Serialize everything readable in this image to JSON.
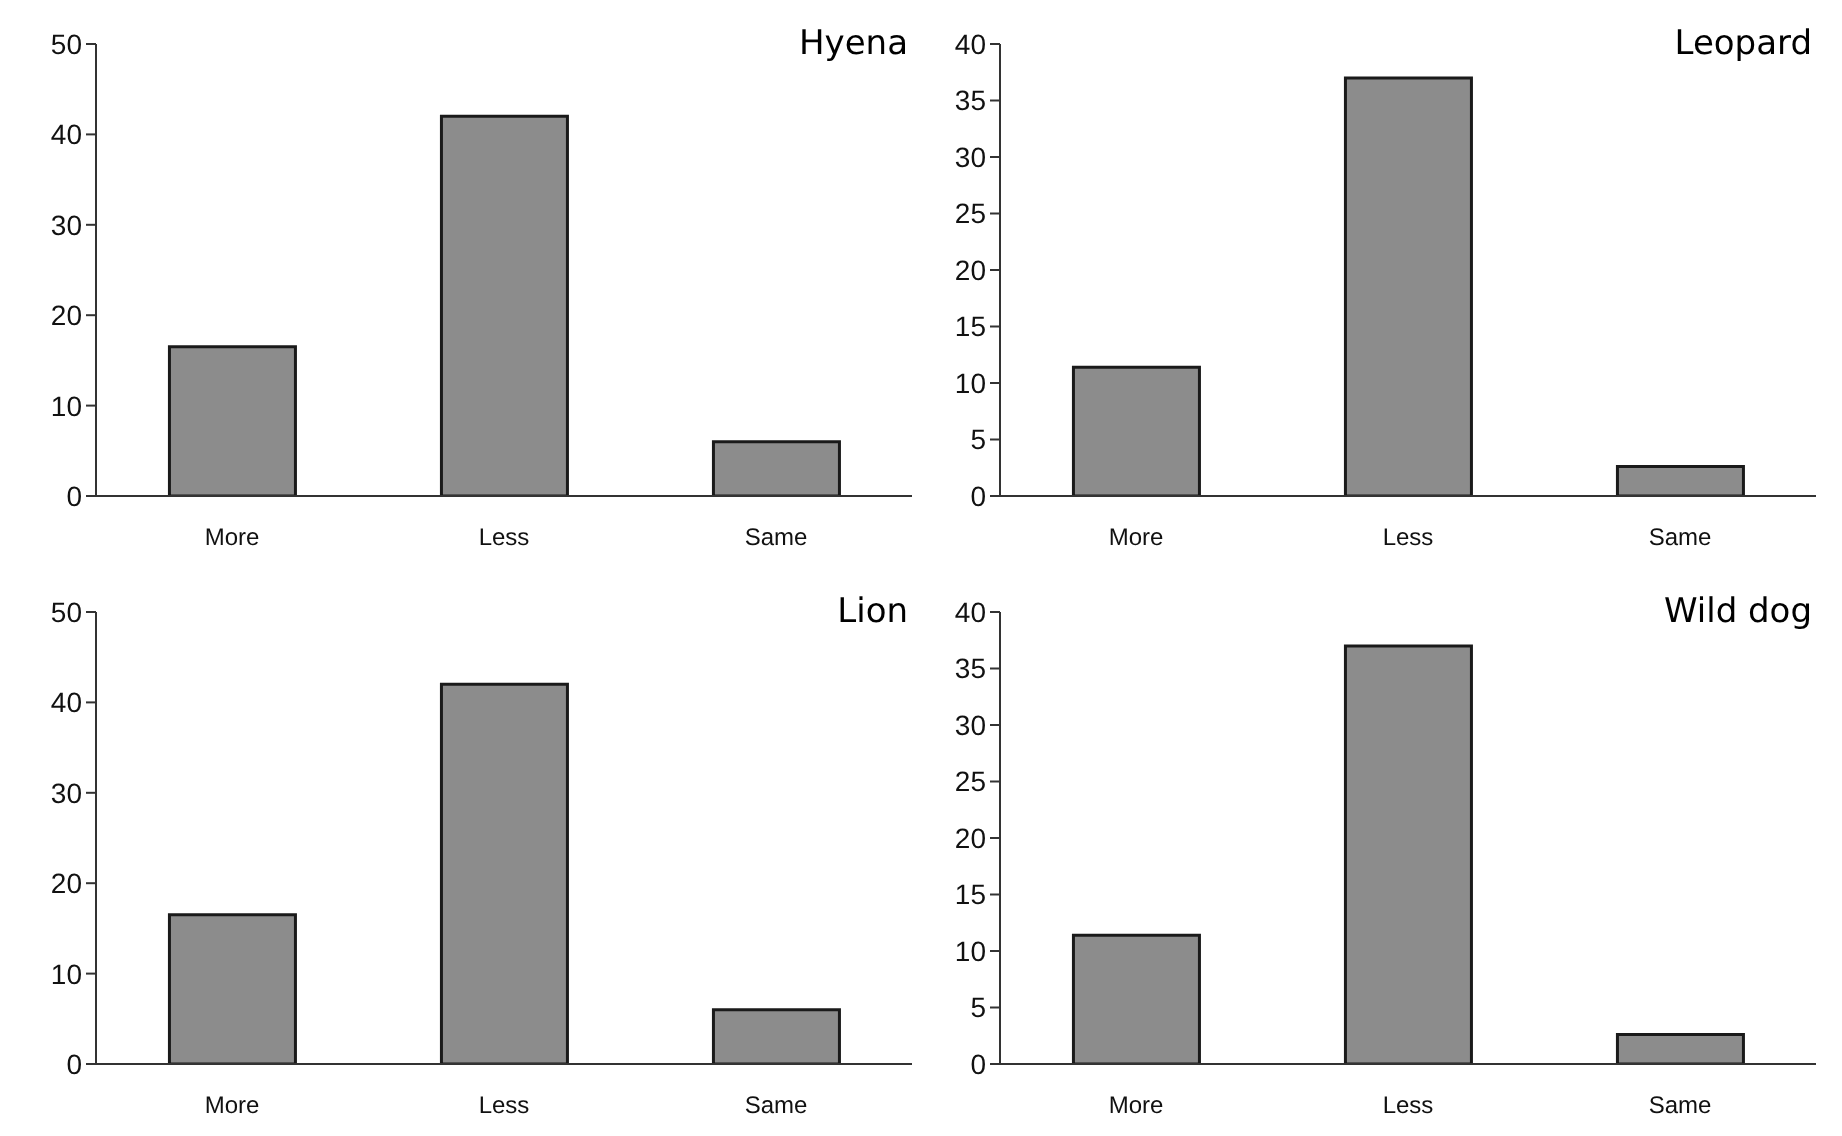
{
  "chart_data": [
    {
      "type": "bar",
      "title": "Hyena",
      "categories": [
        "More",
        "Less",
        "Same"
      ],
      "values": [
        16.5,
        42,
        6
      ],
      "color": "#8c8c8c",
      "ylim": [
        0,
        50
      ],
      "yticks": [
        0,
        10,
        20,
        30,
        40,
        50
      ],
      "grid": false
    },
    {
      "type": "bar",
      "title": "Leopard",
      "categories": [
        "More",
        "Less",
        "Same"
      ],
      "values": [
        11.4,
        37,
        2.6
      ],
      "color": "#8c8c8c",
      "ylim": [
        0,
        40
      ],
      "yticks": [
        0,
        5,
        10,
        15,
        20,
        25,
        30,
        35,
        40
      ],
      "grid": false
    },
    {
      "type": "bar",
      "title": "Lion",
      "categories": [
        "More",
        "Less",
        "Same"
      ],
      "values": [
        16.5,
        42,
        6
      ],
      "color": "#8c8c8c",
      "ylim": [
        0,
        50
      ],
      "yticks": [
        0,
        10,
        20,
        30,
        40,
        50
      ],
      "grid": false
    },
    {
      "type": "bar",
      "title": "Wild dog",
      "categories": [
        "More",
        "Less",
        "Same"
      ],
      "values": [
        11.4,
        37,
        2.6
      ],
      "color": "#8c8c8c",
      "ylim": [
        0,
        40
      ],
      "yticks": [
        0,
        5,
        10,
        15,
        20,
        25,
        30,
        35,
        40
      ],
      "grid": false
    }
  ]
}
